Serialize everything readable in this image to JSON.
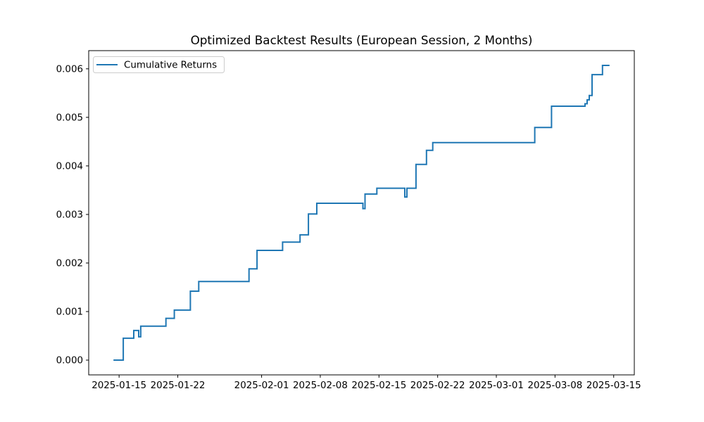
{
  "chart_data": {
    "type": "line",
    "line_style": "step-post",
    "title": "Optimized Backtest Results (European Session, 2 Months)",
    "xlabel": "",
    "ylabel": "",
    "grid": false,
    "legend_position": "upper left",
    "xlim": [
      "2025-01-11T09:00",
      "2025-03-17T11:00"
    ],
    "ylim": [
      -0.000304,
      0.006374
    ],
    "x_ticks": [
      "2025-01-15",
      "2025-01-22",
      "2025-02-01",
      "2025-02-08",
      "2025-02-15",
      "2025-02-22",
      "2025-03-01",
      "2025-03-08",
      "2025-03-15"
    ],
    "y_ticks": [
      {
        "value": 0.0,
        "label": "0.000"
      },
      {
        "value": 0.001,
        "label": "0.001"
      },
      {
        "value": 0.002,
        "label": "0.002"
      },
      {
        "value": 0.003,
        "label": "0.003"
      },
      {
        "value": 0.004,
        "label": "0.004"
      },
      {
        "value": 0.005,
        "label": "0.005"
      },
      {
        "value": 0.006,
        "label": "0.006"
      }
    ],
    "series": [
      {
        "name": "Cumulative Returns",
        "color": "#1f77b4",
        "line_width": 2,
        "points": [
          [
            "2025-01-14T08:00",
            0.0
          ],
          [
            "2025-01-15T12:00",
            0.00045
          ],
          [
            "2025-01-16T18:00",
            0.00061
          ],
          [
            "2025-01-17T08:00",
            0.00048
          ],
          [
            "2025-01-17T14:00",
            0.0007
          ],
          [
            "2025-01-20T14:00",
            0.00086
          ],
          [
            "2025-01-21T14:00",
            0.00103
          ],
          [
            "2025-01-23T12:00",
            0.00142
          ],
          [
            "2025-01-24T12:00",
            0.00162
          ],
          [
            "2025-01-30T12:00",
            0.00188
          ],
          [
            "2025-01-31T11:00",
            0.00226
          ],
          [
            "2025-02-03T12:00",
            0.00243
          ],
          [
            "2025-02-05T14:00",
            0.00258
          ],
          [
            "2025-02-06T14:00",
            0.00301
          ],
          [
            "2025-02-07T14:00",
            0.00323
          ],
          [
            "2025-02-13T02:00",
            0.00312
          ],
          [
            "2025-02-13T08:00",
            0.00342
          ],
          [
            "2025-02-14T18:00",
            0.00354
          ],
          [
            "2025-02-18T02:00",
            0.00336
          ],
          [
            "2025-02-18T08:00",
            0.00354
          ],
          [
            "2025-02-19T10:00",
            0.00403
          ],
          [
            "2025-02-20T16:00",
            0.00432
          ],
          [
            "2025-02-21T10:00",
            0.00448
          ],
          [
            "2025-03-05T14:00",
            0.00479
          ],
          [
            "2025-03-07T14:00",
            0.00523
          ],
          [
            "2025-03-11T14:00",
            0.00528
          ],
          [
            "2025-03-11T20:00",
            0.00536
          ],
          [
            "2025-03-12T02:00",
            0.00545
          ],
          [
            "2025-03-12T10:00",
            0.00588
          ],
          [
            "2025-03-13T16:00",
            0.00607
          ],
          [
            "2025-03-14T12:00",
            0.00607
          ]
        ]
      }
    ]
  }
}
